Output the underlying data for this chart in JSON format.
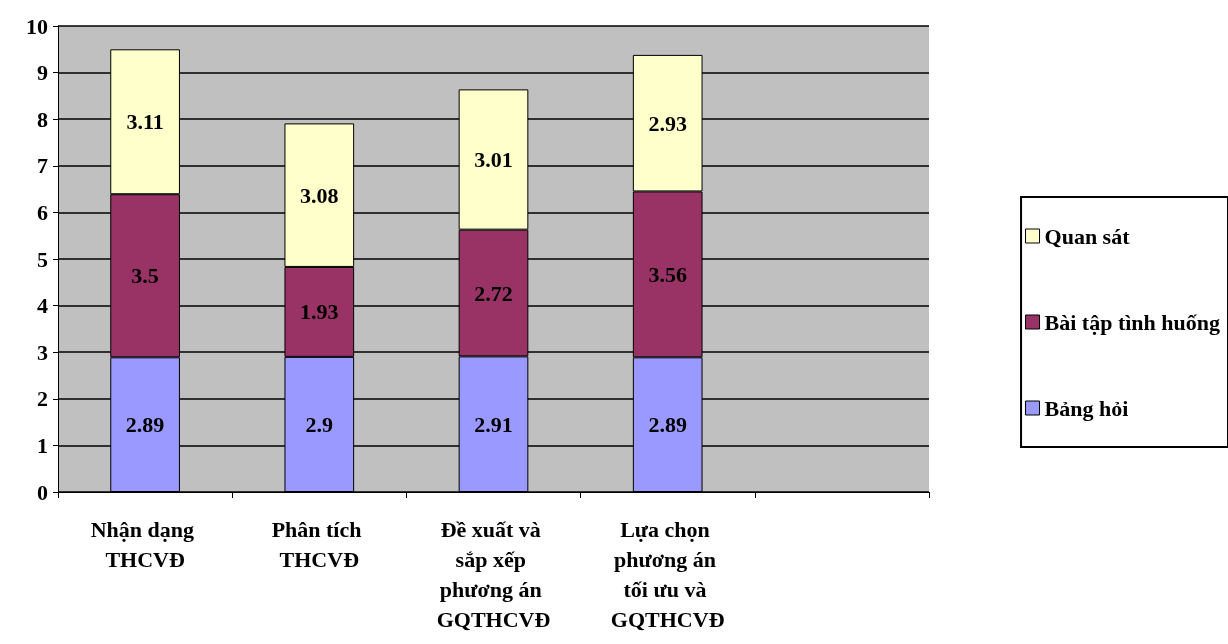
{
  "chart_data": {
    "type": "bar",
    "stacked": true,
    "categories": [
      "Nhận dạng THCVĐ",
      "Phân tích THCVĐ",
      "Đề xuất và sắp xếp phương án GQTHCVĐ",
      "Lựa chọn phương án tối ưu và GQTHCVĐ",
      null
    ],
    "series": [
      {
        "name": "Bảng hỏi",
        "color": "#9999ff",
        "values": [
          2.89,
          2.9,
          2.91,
          2.89,
          null
        ]
      },
      {
        "name": "Bài tập tình huống",
        "color": "#993366",
        "values": [
          3.5,
          1.93,
          2.72,
          3.56,
          null
        ]
      },
      {
        "name": "Quan sát",
        "color": "#ffffcc",
        "values": [
          3.11,
          3.08,
          3.01,
          2.93,
          null
        ]
      }
    ],
    "ylim": [
      0,
      10
    ],
    "yticks": [
      0,
      1,
      2,
      3,
      4,
      5,
      6,
      7,
      8,
      9,
      10
    ],
    "grid": "y",
    "legend": "right",
    "data_labels": true
  }
}
